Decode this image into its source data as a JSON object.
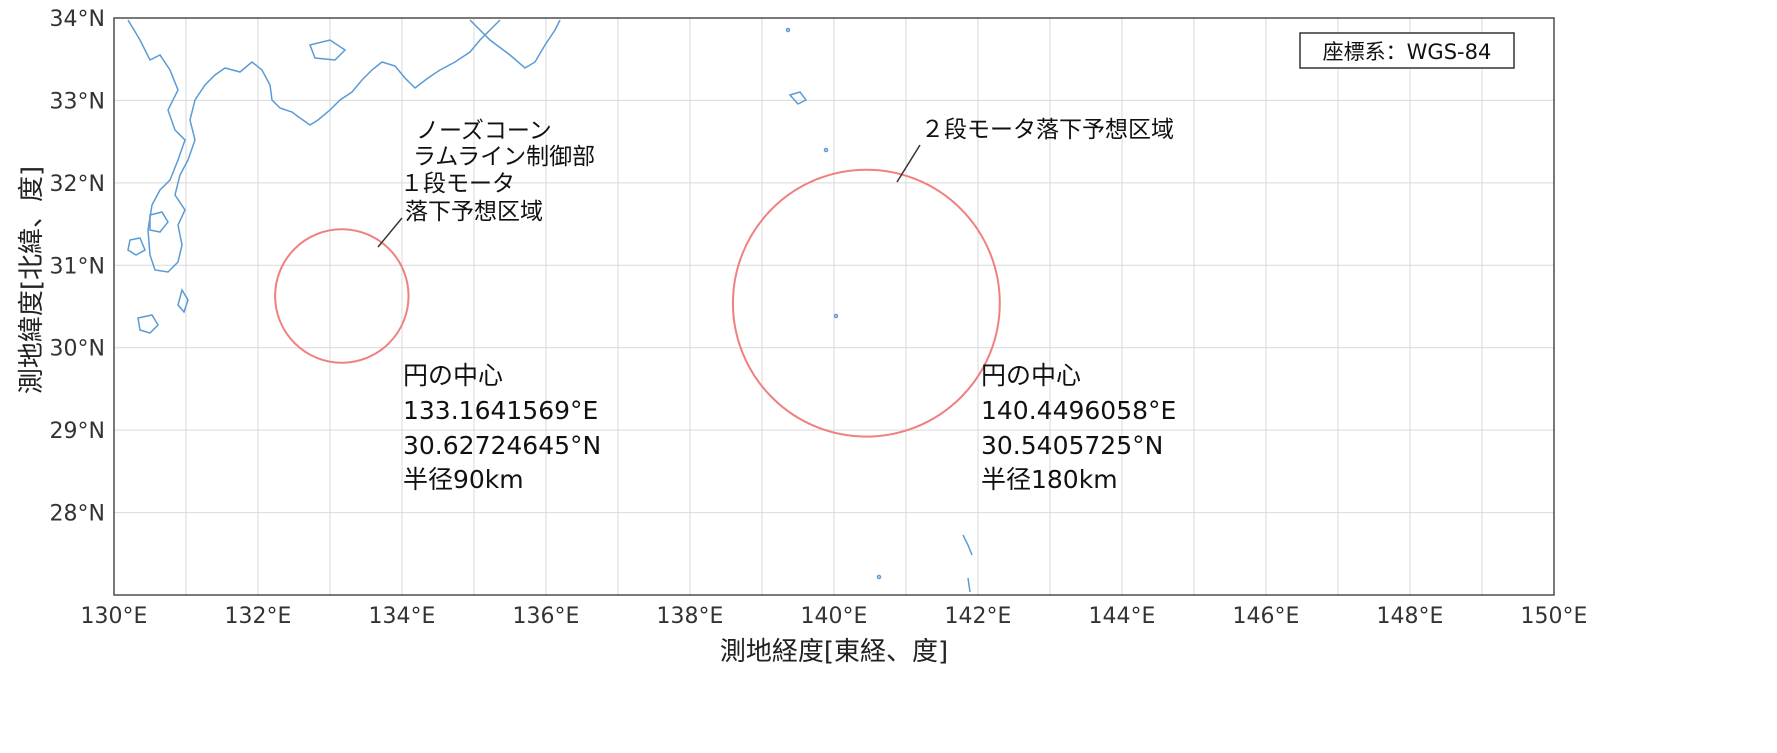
{
  "map": {
    "title": "",
    "crs_label": "座標系：WGS-84",
    "xlabel": "測地経度[東経、度]",
    "ylabel": "測地緯度[北緯、度]",
    "lon_range": [
      130,
      150
    ],
    "lat_range": [
      27,
      34
    ],
    "x_ticks": [
      {
        "value": 130,
        "label": "130°E"
      },
      {
        "value": 132,
        "label": "132°E"
      },
      {
        "value": 134,
        "label": "134°E"
      },
      {
        "value": 136,
        "label": "136°E"
      },
      {
        "value": 138,
        "label": "138°E"
      },
      {
        "value": 140,
        "label": "140°E"
      },
      {
        "value": 142,
        "label": "142°E"
      },
      {
        "value": 144,
        "label": "144°E"
      },
      {
        "value": 146,
        "label": "146°E"
      },
      {
        "value": 148,
        "label": "148°E"
      },
      {
        "value": 150,
        "label": "150°E"
      }
    ],
    "y_ticks": [
      {
        "value": 34,
        "label": "34°N"
      },
      {
        "value": 33,
        "label": "33°N"
      },
      {
        "value": 32,
        "label": "32°N"
      },
      {
        "value": 31,
        "label": "31°N"
      },
      {
        "value": 30,
        "label": "30°N"
      },
      {
        "value": 29,
        "label": "29°N"
      },
      {
        "value": 28,
        "label": "28°N"
      }
    ],
    "grid": true,
    "colors": {
      "coastline": "#5b9bd5",
      "circle": "#f08080",
      "grid": "#d9d9d9"
    },
    "zones": [
      {
        "center_lon": 133.1641569,
        "center_lat": 30.62724645,
        "radius_km": 90,
        "label_lines": [
          "ノーズコーン",
          "ラムライン制御部",
          "１段モータ",
          "落下予想区域"
        ],
        "info_lines": [
          "円の中心",
          "133.1641569°E",
          "30.62724645°N",
          "半径90km"
        ]
      },
      {
        "center_lon": 140.4496058,
        "center_lat": 30.5405725,
        "radius_km": 180,
        "label_lines": [
          "２段モータ落下予想区域"
        ],
        "info_lines": [
          "円の中心",
          "140.4496058°E",
          "30.5405725°N",
          "半径180km"
        ]
      }
    ]
  }
}
